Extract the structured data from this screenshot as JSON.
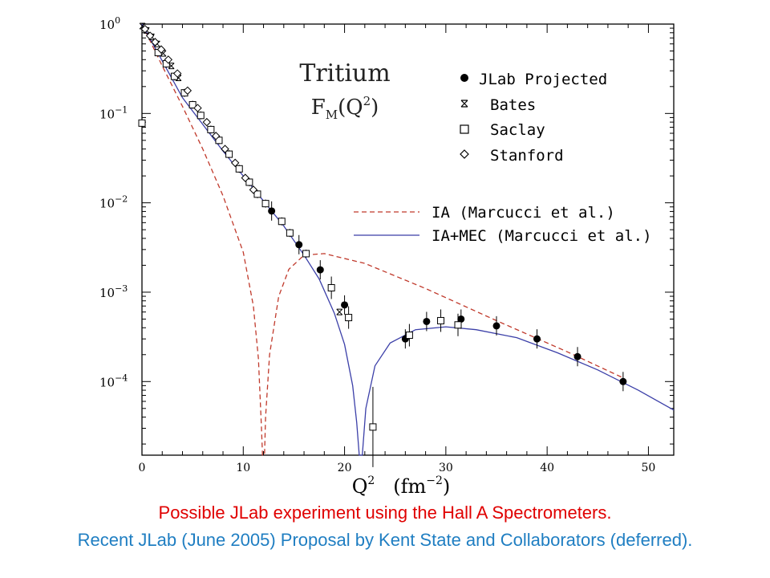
{
  "colors": {
    "ia": "#c0392b",
    "iamec": "#3b3fa8",
    "caption_red": "#e00000",
    "caption_blue": "#1f7ec2"
  },
  "chart_data": {
    "type": "scatter",
    "title_line1": "Tritium",
    "title_line2": "F",
    "title_sub": "M",
    "title_rest": "(Q",
    "title_sup": "2",
    "title_end": ")",
    "xlabel_main": "Q",
    "xlabel_sup": "2",
    "xlabel_unit_open": "(fm",
    "xlabel_unit_sup": "−2",
    "xlabel_unit_close": ")",
    "xlim": [
      0,
      52.5
    ],
    "ylim": [
      1.5e-05,
      1.0
    ],
    "yscale": "log",
    "xticks": [
      "0",
      "10",
      "20",
      "30",
      "40",
      "50"
    ],
    "yticks": [
      {
        "base": "10",
        "exp": "0",
        "value": 1
      },
      {
        "base": "10",
        "exp": "−1",
        "value": 0.1
      },
      {
        "base": "10",
        "exp": "−2",
        "value": 0.01
      },
      {
        "base": "10",
        "exp": "−3",
        "value": 0.001
      },
      {
        "base": "10",
        "exp": "−4",
        "value": 0.0001
      }
    ],
    "legend": {
      "placement": "top-right",
      "markers": [
        "JLab Projected",
        "Bates",
        "Saclay",
        "Stanford"
      ],
      "curves": [
        "IA (Marcucci et al.)",
        "IA+MEC (Marcucci et al.)"
      ]
    },
    "series": [
      {
        "name": "JLab Projected",
        "marker": "filled-circle",
        "points": [
          {
            "x": 12.8,
            "y": 0.0081
          },
          {
            "x": 15.5,
            "y": 0.0034
          },
          {
            "x": 17.6,
            "y": 0.00178
          },
          {
            "x": 20.0,
            "y": 0.00072
          },
          {
            "x": 26.0,
            "y": 0.0003
          },
          {
            "x": 28.1,
            "y": 0.00047
          },
          {
            "x": 31.5,
            "y": 0.0005
          },
          {
            "x": 35.0,
            "y": 0.00042
          },
          {
            "x": 39.0,
            "y": 0.0003
          },
          {
            "x": 43.0,
            "y": 0.00019
          },
          {
            "x": 47.5,
            "y": 0.0001
          }
        ]
      },
      {
        "name": "Bates",
        "marker": "star",
        "points": [
          {
            "x": 0.05,
            "y": 0.95
          },
          {
            "x": 0.45,
            "y": 0.85
          },
          {
            "x": 0.95,
            "y": 0.72
          },
          {
            "x": 1.5,
            "y": 0.6
          },
          {
            "x": 2.1,
            "y": 0.47
          },
          {
            "x": 2.9,
            "y": 0.34
          },
          {
            "x": 3.6,
            "y": 0.25
          },
          {
            "x": 19.5,
            "y": 0.0006
          }
        ]
      },
      {
        "name": "Saclay",
        "marker": "open-square",
        "points": [
          {
            "x": 0.0,
            "y": 0.078
          },
          {
            "x": 1.6,
            "y": 0.48
          },
          {
            "x": 2.4,
            "y": 0.36
          },
          {
            "x": 3.2,
            "y": 0.26
          },
          {
            "x": 4.2,
            "y": 0.17
          },
          {
            "x": 5.0,
            "y": 0.125
          },
          {
            "x": 5.8,
            "y": 0.095
          },
          {
            "x": 6.8,
            "y": 0.066
          },
          {
            "x": 7.6,
            "y": 0.05
          },
          {
            "x": 8.6,
            "y": 0.035
          },
          {
            "x": 9.6,
            "y": 0.024
          },
          {
            "x": 10.6,
            "y": 0.017
          },
          {
            "x": 11.4,
            "y": 0.0125
          },
          {
            "x": 12.2,
            "y": 0.0098
          },
          {
            "x": 13.8,
            "y": 0.0062
          },
          {
            "x": 14.6,
            "y": 0.0046
          },
          {
            "x": 16.2,
            "y": 0.0027
          },
          {
            "x": 18.7,
            "y": 0.00112
          },
          {
            "x": 20.4,
            "y": 0.00052
          },
          {
            "x": 22.8,
            "y": 3.1e-05
          },
          {
            "x": 26.4,
            "y": 0.00033
          },
          {
            "x": 29.5,
            "y": 0.00048
          },
          {
            "x": 31.2,
            "y": 0.00043
          }
        ]
      },
      {
        "name": "Stanford",
        "marker": "open-diamond",
        "points": [
          {
            "x": 0.3,
            "y": 0.88
          },
          {
            "x": 0.8,
            "y": 0.74
          },
          {
            "x": 1.3,
            "y": 0.63
          },
          {
            "x": 1.9,
            "y": 0.52
          },
          {
            "x": 2.6,
            "y": 0.4
          },
          {
            "x": 3.5,
            "y": 0.28
          },
          {
            "x": 4.5,
            "y": 0.18
          },
          {
            "x": 5.5,
            "y": 0.115
          },
          {
            "x": 6.4,
            "y": 0.08
          },
          {
            "x": 7.3,
            "y": 0.056
          },
          {
            "x": 8.2,
            "y": 0.04
          },
          {
            "x": 9.2,
            "y": 0.028
          },
          {
            "x": 10.2,
            "y": 0.019
          },
          {
            "x": 11.0,
            "y": 0.014
          }
        ]
      },
      {
        "name": "IA (Marcucci et al.)",
        "line": "dashed",
        "points": [
          {
            "x": 0,
            "y": 1.0
          },
          {
            "x": 2,
            "y": 0.34
          },
          {
            "x": 4,
            "y": 0.12
          },
          {
            "x": 6,
            "y": 0.04
          },
          {
            "x": 8,
            "y": 0.012
          },
          {
            "x": 10,
            "y": 0.0028
          },
          {
            "x": 11,
            "y": 0.0007
          },
          {
            "x": 11.5,
            "y": 0.00018
          },
          {
            "x": 11.8,
            "y": 3e-05
          },
          {
            "x": 11.9,
            "y": 1.5e-05
          },
          {
            "x": 12.1,
            "y": 1.5e-05
          },
          {
            "x": 12.2,
            "y": 4e-05
          },
          {
            "x": 12.6,
            "y": 0.0002
          },
          {
            "x": 13.5,
            "y": 0.0009
          },
          {
            "x": 14.5,
            "y": 0.0018
          },
          {
            "x": 16,
            "y": 0.0026
          },
          {
            "x": 18,
            "y": 0.0027
          },
          {
            "x": 22,
            "y": 0.0021
          },
          {
            "x": 28,
            "y": 0.0011
          },
          {
            "x": 35,
            "y": 0.00048
          },
          {
            "x": 42,
            "y": 0.000215
          },
          {
            "x": 47.5,
            "y": 0.00011
          }
        ]
      },
      {
        "name": "IA+MEC (Marcucci et al.)",
        "line": "solid",
        "points": [
          {
            "x": 0,
            "y": 1.0
          },
          {
            "x": 4,
            "y": 0.15
          },
          {
            "x": 8,
            "y": 0.038
          },
          {
            "x": 12,
            "y": 0.0105
          },
          {
            "x": 14,
            "y": 0.0055
          },
          {
            "x": 16,
            "y": 0.0026
          },
          {
            "x": 17.5,
            "y": 0.0014
          },
          {
            "x": 19,
            "y": 0.00058
          },
          {
            "x": 20,
            "y": 0.00026
          },
          {
            "x": 20.8,
            "y": 9e-05
          },
          {
            "x": 21.2,
            "y": 3.5e-05
          },
          {
            "x": 21.45,
            "y": 1.5e-05
          },
          {
            "x": 21.75,
            "y": 1.5e-05
          },
          {
            "x": 22.1,
            "y": 5e-05
          },
          {
            "x": 23,
            "y": 0.00015
          },
          {
            "x": 24.5,
            "y": 0.00027
          },
          {
            "x": 27,
            "y": 0.00038
          },
          {
            "x": 30,
            "y": 0.00041
          },
          {
            "x": 33,
            "y": 0.00038
          },
          {
            "x": 37,
            "y": 0.00031
          },
          {
            "x": 41,
            "y": 0.00021
          },
          {
            "x": 45,
            "y": 0.000135
          },
          {
            "x": 49,
            "y": 8e-05
          },
          {
            "x": 52.5,
            "y": 4.8e-05
          }
        ]
      }
    ]
  },
  "captions": {
    "line1": "Possible JLab experiment using the Hall A Spectrometers.",
    "line2": "Recent JLab (June 2005) Proposal by Kent State and Collaborators (deferred)."
  }
}
